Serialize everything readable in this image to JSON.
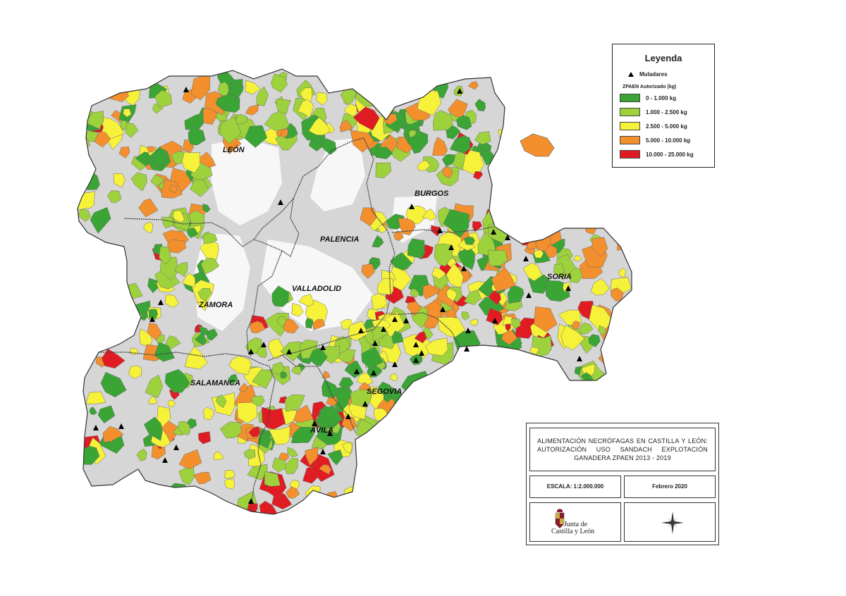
{
  "legend": {
    "title": "Leyenda",
    "muladares_label": "Muladares",
    "zpaen_label": "ZPAEN Autorizado (kg)",
    "classes": [
      {
        "label": "0 - 1.000 kg",
        "color": "#3aa435"
      },
      {
        "label": "1.000 - 2.500 kg",
        "color": "#9ed23c"
      },
      {
        "label": "2.500 - 5.000 kg",
        "color": "#f6f23a"
      },
      {
        "label": "5.000 - 10.000 kg",
        "color": "#f3902d"
      },
      {
        "label": "10.000 - 25.000 kg",
        "color": "#e11b22"
      }
    ]
  },
  "provinces": [
    "LEÓN",
    "BURGOS",
    "PALENCIA",
    "SORIA",
    "VALLADOLID",
    "ZAMORA",
    "SALAMANCA",
    "SEGOVIA",
    "ÁVILA"
  ],
  "title_block": {
    "title": "ALIMENTACIÓN NECRÓFAGAS EN CASTILLA Y LEÓN: AUTORIZACIÓN USO SANDACH EXPLOTACIÓN GANADERA ZPAEN 2013 - 2019",
    "scale": "ESCALA: 1:2.000.000",
    "date": "Febrero 2020",
    "logo_text_1": "Junta de",
    "logo_text_2": "Castilla y León"
  },
  "colors": {
    "no_zone": "#d6d6d6",
    "white_zone": "#f7f7f7",
    "boundary": "#555555"
  }
}
